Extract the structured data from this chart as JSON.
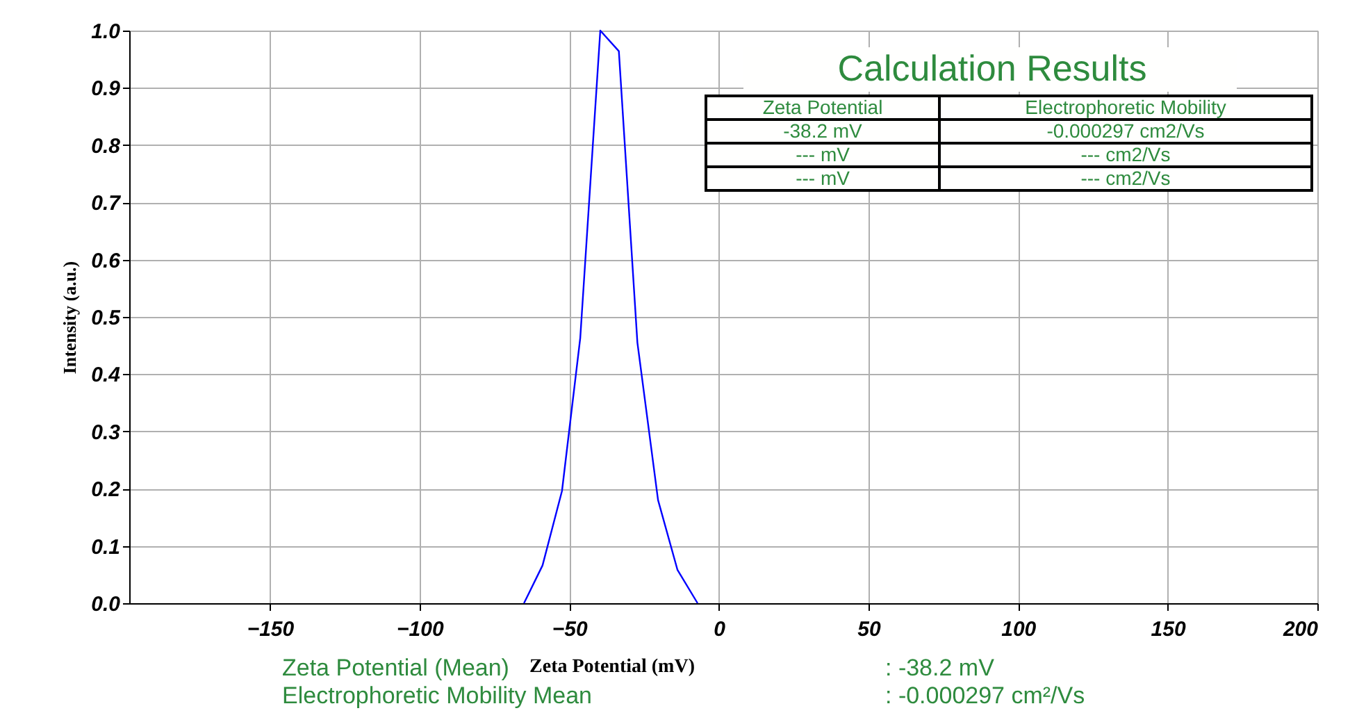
{
  "chart_data": {
    "type": "line",
    "xlabel": "Zeta Potential (mV)",
    "ylabel": "Intensity (a.u.)",
    "series": [
      {
        "color": "#0000ff",
        "x": [
          -65.1,
          -58.9,
          -52.4,
          -46.3,
          -39.6,
          -33.4,
          -27.2,
          -20.3,
          -13.8,
          -7.1
        ],
        "values": [
          0,
          0.066,
          0.196,
          0.463,
          1.0,
          0.964,
          0.455,
          0.18,
          0.058,
          0
        ]
      }
    ],
    "xlim": [
      -197,
      200
    ],
    "xticks": [
      -150,
      -100,
      -50,
      0,
      50,
      100,
      150,
      200
    ],
    "ylim": [
      0,
      1
    ],
    "yticks": [
      {
        "value": 0,
        "label": "0.0"
      },
      0.1,
      0.2,
      0.3,
      0.4,
      0.5,
      0.6,
      0.7,
      0.8,
      0.9,
      {
        "value": 1,
        "label": "1.0"
      }
    ],
    "grid": true,
    "marker": "none",
    "line_style": "solid",
    "annotations": [
      "Calculation Results",
      "Zeta Potential",
      "Electrophoretic Mobility",
      "-38.2 mV",
      "-0.000297 cm2/Vs",
      "--- mV",
      "--- cm2/Vs",
      "--- mV",
      "--- cm2/Vs",
      "Zeta Potential (Mean)",
      ":  -38.2 mV",
      "Electrophoretic Mobility Mean",
      ":  -0.000297 cm²/Vs"
    ]
  }
}
